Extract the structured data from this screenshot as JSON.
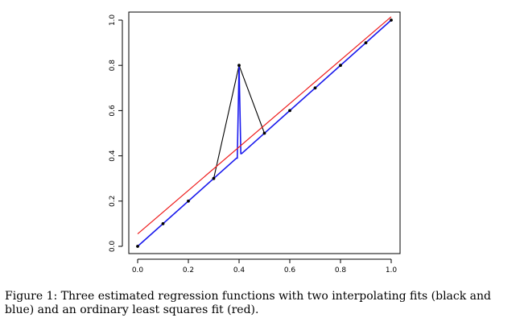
{
  "caption": "Figure 1: Three estimated regression functions with two interpolating fits (black and blue) and an ordinary least squares fit (red).",
  "colors": {
    "black_fit": "#000000",
    "blue_fit": "#1a1aee",
    "ols_fit": "#ee1c1c",
    "points": "#000000"
  },
  "chart_data": {
    "type": "line",
    "title": "",
    "xlabel": "",
    "ylabel": "",
    "xlim": [
      0.0,
      1.0
    ],
    "ylim": [
      0.0,
      1.0
    ],
    "x_ticks": [
      "0.0",
      "0.2",
      "0.4",
      "0.6",
      "0.8",
      "1.0"
    ],
    "y_ticks": [
      "0.0",
      "0.2",
      "0.4",
      "0.6",
      "0.8",
      "1.0"
    ],
    "grid": false,
    "legend": "none",
    "points": {
      "x": [
        0.0,
        0.1,
        0.2,
        0.3,
        0.4,
        0.5,
        0.6,
        0.7,
        0.8,
        0.9,
        1.0
      ],
      "y": [
        0.0,
        0.1,
        0.2,
        0.3,
        0.8,
        0.5,
        0.6,
        0.7,
        0.8,
        0.9,
        1.0
      ]
    },
    "series": [
      {
        "color": "black",
        "x": [
          0.0,
          0.1,
          0.2,
          0.3,
          0.4,
          0.5,
          0.6,
          0.7,
          0.8,
          0.9,
          1.0
        ],
        "y": [
          0.0,
          0.1,
          0.2,
          0.3,
          0.8,
          0.5,
          0.6,
          0.7,
          0.8,
          0.9,
          1.0
        ]
      },
      {
        "color": "blue",
        "x": [
          0.0,
          0.39,
          0.393,
          0.4,
          0.407,
          0.41,
          1.0
        ],
        "y": [
          0.0,
          0.39,
          0.39,
          0.8,
          0.41,
          0.41,
          1.0
        ]
      },
      {
        "color": "red",
        "x": [
          0.0,
          1.0
        ],
        "y": [
          0.055,
          1.015
        ]
      }
    ]
  }
}
